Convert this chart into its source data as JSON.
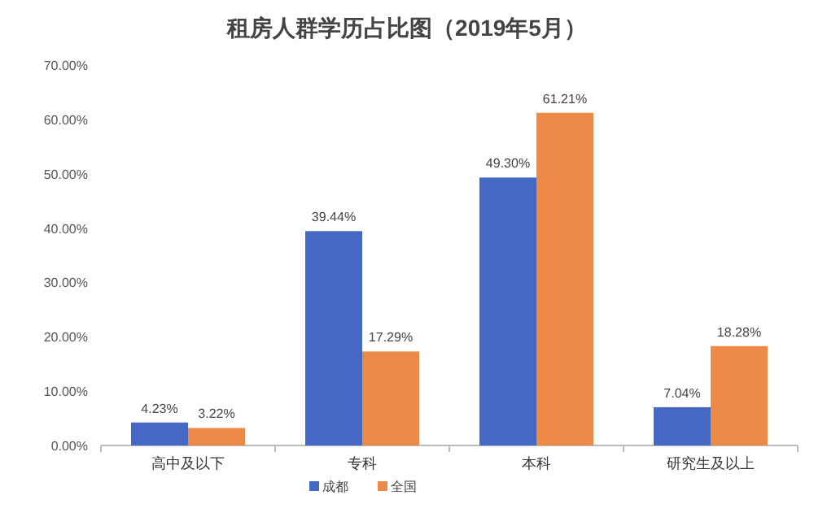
{
  "chart_data": {
    "type": "bar",
    "title": "租房人群学历占比图（2019年5月）",
    "categories": [
      "高中及以下",
      "专科",
      "本科",
      "研究生及以上"
    ],
    "series": [
      {
        "name": "成都",
        "color": "#4668c5",
        "values": [
          4.23,
          39.44,
          49.3,
          7.04
        ],
        "value_labels": [
          "4.23%",
          "39.44%",
          "49.30%",
          "7.04%"
        ]
      },
      {
        "name": "全国",
        "color": "#ed8a47",
        "values": [
          3.22,
          17.29,
          61.21,
          18.28
        ],
        "value_labels": [
          "3.22%",
          "17.29%",
          "61.21%",
          "18.28%"
        ]
      }
    ],
    "ylim": [
      0,
      70
    ],
    "yticks": [
      {
        "value": 0,
        "label": "0.00%"
      },
      {
        "value": 10,
        "label": "10.00%"
      },
      {
        "value": 20,
        "label": "20.00%"
      },
      {
        "value": 30,
        "label": "30.00%"
      },
      {
        "value": 40,
        "label": "40.00%"
      },
      {
        "value": 50,
        "label": "50.00%"
      },
      {
        "value": 60,
        "label": "60.00%"
      },
      {
        "value": 70,
        "label": "70.00%"
      }
    ],
    "legend": "bottom"
  }
}
